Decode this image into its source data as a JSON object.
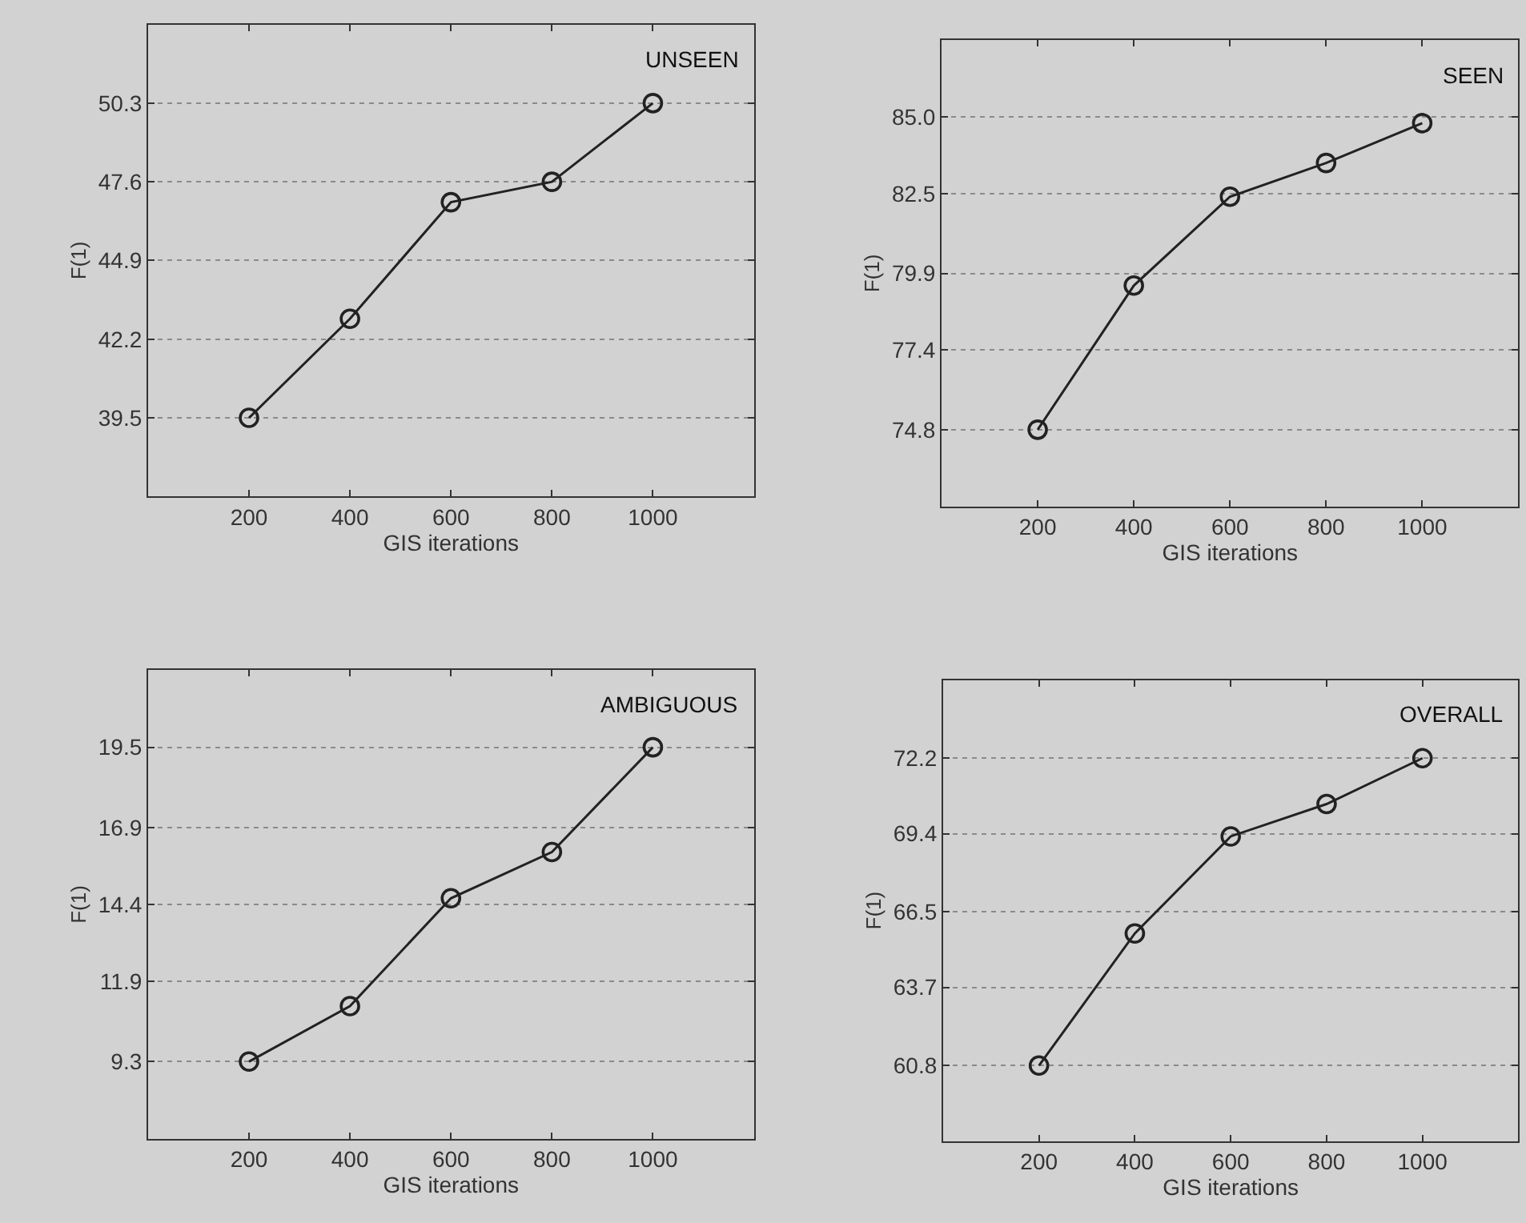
{
  "chart_data": [
    {
      "type": "line",
      "title": "UNSEEN",
      "xlabel": "GIS iterations",
      "ylabel": "F(1)",
      "x": [
        200,
        400,
        600,
        800,
        1000
      ],
      "series": [
        {
          "color": "#222222",
          "values": [
            39.5,
            42.9,
            46.9,
            47.6,
            50.3
          ]
        }
      ],
      "xlim": [
        0,
        1200
      ],
      "xticks": [
        200,
        400,
        600,
        800,
        1000
      ],
      "ylim": [
        36.8,
        53.0
      ],
      "yticks": [
        39.5,
        42.2,
        44.9,
        47.6,
        50.3
      ],
      "grid": "y",
      "marker": "circle",
      "line_style": "solid"
    },
    {
      "type": "line",
      "title": "SEEN",
      "xlabel": "GIS iterations",
      "ylabel": "F(1)",
      "x": [
        200,
        400,
        600,
        800,
        1000
      ],
      "series": [
        {
          "color": "#222222",
          "values": [
            74.8,
            79.5,
            82.4,
            83.5,
            84.8
          ]
        }
      ],
      "xlim": [
        0,
        1200
      ],
      "xticks": [
        200,
        400,
        600,
        800,
        1000
      ],
      "ylim": [
        72.3,
        87.5
      ],
      "yticks": [
        {
          "value": 74.8,
          "label": "74.8"
        },
        {
          "value": 77.4,
          "label": "77.4"
        },
        {
          "value": 79.9,
          "label": "79.9"
        },
        {
          "value": 82.5,
          "label": "82.5"
        },
        {
          "value": 85.0,
          "label": "85.0"
        }
      ],
      "grid": "y",
      "marker": "circle",
      "line_style": "solid"
    },
    {
      "type": "line",
      "title": "AMBIGUOUS",
      "xlabel": "GIS iterations",
      "ylabel": "F(1)",
      "x": [
        200,
        400,
        600,
        800,
        1000
      ],
      "series": [
        {
          "color": "#222222",
          "values": [
            9.3,
            11.1,
            14.6,
            16.1,
            19.5
          ]
        }
      ],
      "xlim": [
        0,
        1200
      ],
      "xticks": [
        200,
        400,
        600,
        800,
        1000
      ],
      "ylim": [
        6.8,
        22.0
      ],
      "yticks": [
        9.3,
        11.9,
        14.4,
        16.9,
        19.5
      ],
      "grid": "y",
      "marker": "circle",
      "line_style": "solid"
    },
    {
      "type": "line",
      "title": "OVERALL",
      "xlabel": "GIS iterations",
      "ylabel": "F(1)",
      "x": [
        200,
        400,
        600,
        800,
        1000
      ],
      "series": [
        {
          "color": "#222222",
          "values": [
            60.8,
            65.7,
            69.3,
            70.5,
            72.2
          ]
        }
      ],
      "xlim": [
        0,
        1200
      ],
      "xticks": [
        200,
        400,
        600,
        800,
        1000
      ],
      "ylim": [
        58.0,
        75.1
      ],
      "yticks": [
        60.8,
        63.7,
        66.5,
        69.4,
        72.2
      ],
      "grid": "y",
      "marker": "circle",
      "line_style": "solid"
    }
  ]
}
